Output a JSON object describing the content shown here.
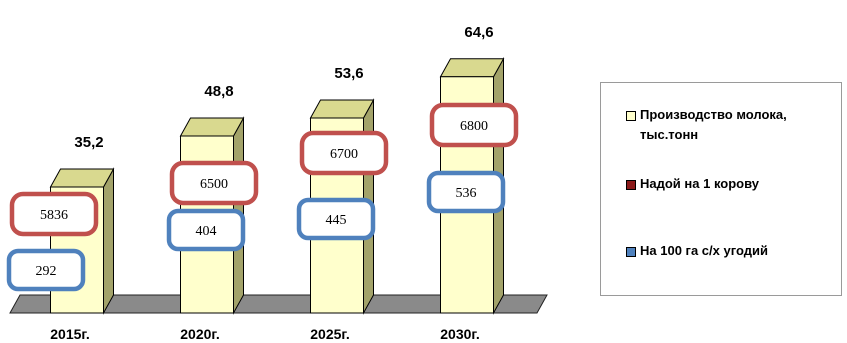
{
  "chart_data": {
    "type": "bar",
    "categories": [
      "2015г.",
      "2020г.",
      "2025г.",
      "2030г."
    ],
    "series": [
      {
        "name": "Производство молока, тыс.тонн",
        "values": [
          35.2,
          48.8,
          53.6,
          64.6
        ],
        "labels": [
          "35,2",
          "48,8",
          "53,6",
          "64,6"
        ],
        "color": "#FFFFCC"
      },
      {
        "name": "Надой на 1 корову",
        "values": [
          5836,
          6500,
          6700,
          6800
        ],
        "color": "#C0504D"
      },
      {
        "name": "На 100 га с/х угодий",
        "values": [
          292,
          404,
          445,
          536
        ],
        "color": "#4F81BD"
      }
    ],
    "title": "",
    "xlabel": "",
    "ylabel": "",
    "legend_position": "right",
    "grid": false
  },
  "legend": {
    "items": [
      {
        "label": "Производство молока, тыс.тонн",
        "color": "#FFFFCC"
      },
      {
        "label": "Надой на 1 корову",
        "color": "#8B1A1A"
      },
      {
        "label": "На 100 га с/х угодий",
        "color": "#4F81BD"
      }
    ]
  }
}
